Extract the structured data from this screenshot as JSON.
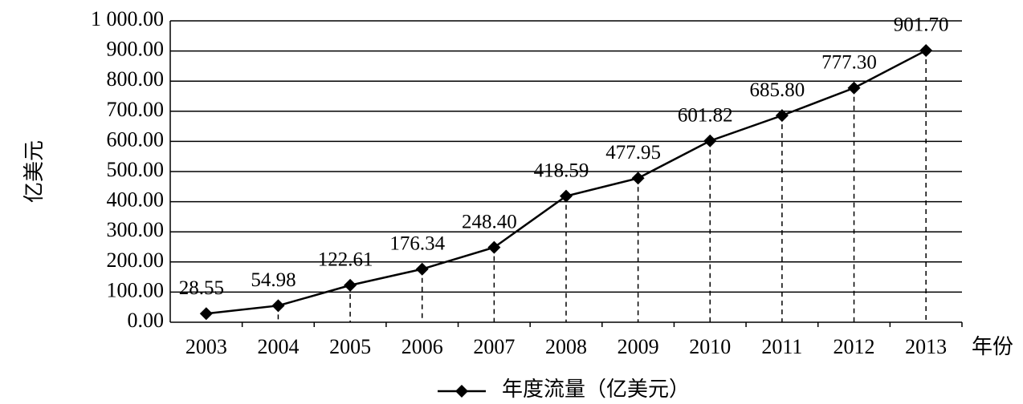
{
  "chart_data": {
    "type": "line",
    "y_label": "亿美元",
    "x_label": "年份",
    "categories": [
      "2003",
      "2004",
      "2005",
      "2006",
      "2007",
      "2008",
      "2009",
      "2010",
      "2011",
      "2012",
      "2013"
    ],
    "series": [
      {
        "name": "年度流量（亿美元）",
        "color": "#000000",
        "values": [
          28.55,
          54.98,
          122.61,
          176.34,
          248.4,
          418.59,
          477.95,
          601.82,
          685.8,
          777.3,
          901.7
        ],
        "value_labels": [
          "28.55",
          "54.98",
          "122.61",
          "176.34",
          "248.40",
          "418.59",
          "477.95",
          "601.82",
          "685.80",
          "777.30",
          "901.70"
        ]
      }
    ],
    "ylim": [
      0,
      1000
    ],
    "yticks": [
      {
        "value": 0,
        "label": "0.00"
      },
      {
        "value": 100,
        "label": "100.00"
      },
      {
        "value": 200,
        "label": "200.00"
      },
      {
        "value": 300,
        "label": "300.00"
      },
      {
        "value": 400,
        "label": "400.00"
      },
      {
        "value": 500,
        "label": "500.00"
      },
      {
        "value": 600,
        "label": "600.00"
      },
      {
        "value": 700,
        "label": "700.00"
      },
      {
        "value": 800,
        "label": "800.00"
      },
      {
        "value": 900,
        "label": "900.00"
      },
      {
        "value": 1000,
        "label": "1 000.00"
      }
    ],
    "grid": true,
    "drop_lines": true,
    "legend": "bottom"
  }
}
